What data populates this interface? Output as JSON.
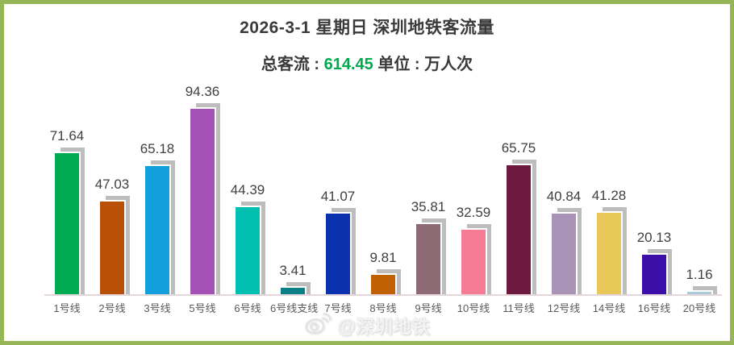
{
  "window": {
    "border_color": "#96B556",
    "background": "#FFFFFF"
  },
  "header": {
    "title": "2026-3-1 星期日  深圳地铁客流量",
    "subtitle": {
      "prefix": "总客流 : ",
      "total": "614.45",
      "suffix": "  单位 : 万人次",
      "total_color": "#00A94F"
    }
  },
  "chart_data": {
    "type": "bar",
    "title": "2026-3-1 星期日 深圳地铁客流量",
    "total": 614.45,
    "unit": "万人次",
    "categories": [
      "1号线",
      "2号线",
      "3号线",
      "5号线",
      "6号线",
      "6号线支线",
      "7号线",
      "8号线",
      "9号线",
      "10号线",
      "11号线",
      "12号线",
      "14号线",
      "16号线",
      "20号线"
    ],
    "values": [
      71.64,
      47.03,
      65.18,
      94.36,
      44.39,
      3.41,
      41.07,
      9.81,
      35.81,
      32.59,
      65.75,
      40.84,
      41.28,
      20.13,
      1.16
    ],
    "bar_colors": [
      "#00AB52",
      "#B85106",
      "#129FDB",
      "#A351B5",
      "#00C0B2",
      "#0B7F86",
      "#0A32AE",
      "#C26104",
      "#8E6B74",
      "#F67C95",
      "#6C183F",
      "#A994B8",
      "#E9C85A",
      "#3C0EA8",
      "#A9CBD8"
    ],
    "value_label_color": "#404040",
    "axis_label_color": "#595959",
    "shadow_color": "#BDBDBD",
    "baseline_color": "#E4D6DB",
    "ylim": [
      0,
      100
    ],
    "grid": false,
    "legend": false,
    "value_label_format": "2-decimals-above-bar"
  },
  "footer": {
    "watermark_text": "@深圳地铁",
    "icon": "weibo-icon",
    "color": "#F3F3F3"
  }
}
